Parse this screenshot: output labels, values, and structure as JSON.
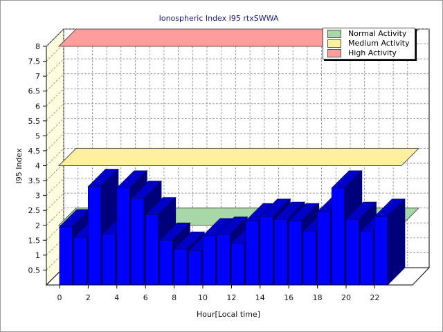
{
  "chart_data": {
    "type": "bar",
    "title": "Ionospheric Index I95 rtxSWWA",
    "xlabel": "Hour[Local time]",
    "ylabel": "I95 Index",
    "ylim": [
      0,
      8
    ],
    "yticks": [
      "0.5",
      "1",
      "1.5",
      "2",
      "2.5",
      "3",
      "3.5",
      "4",
      "4.5",
      "5",
      "5.5",
      "6",
      "6.5",
      "7",
      "7.5",
      "8"
    ],
    "xticks": [
      "0",
      "2",
      "4",
      "6",
      "8",
      "10",
      "12",
      "14",
      "16",
      "18",
      "20",
      "22"
    ],
    "x": [
      0,
      1,
      2,
      3,
      4,
      5,
      6,
      7,
      8,
      9,
      10,
      11,
      12,
      13,
      14,
      15,
      16,
      17,
      18,
      19,
      20,
      21,
      22,
      23
    ],
    "values": [
      1.95,
      1.6,
      3.3,
      1.7,
      3.25,
      2.9,
      2.35,
      1.5,
      1.2,
      1.15,
      1.65,
      1.7,
      1.4,
      2.15,
      2.3,
      2.2,
      2.15,
      1.8,
      2.45,
      3.25,
      2.2,
      1.8,
      2.3,
      0
    ],
    "bands": [
      {
        "name": "Normal Activity",
        "value": 2.0,
        "color": "#a8d8a8"
      },
      {
        "name": "Medium Activity",
        "value": 4.0,
        "color": "#fff0a0"
      },
      {
        "name": "High Activity",
        "value": 8.0,
        "color": "#ff9c9c"
      }
    ],
    "grid": true,
    "legend": "top-right",
    "bar_color": "#0000ff",
    "bar_edge": "#00006e"
  }
}
